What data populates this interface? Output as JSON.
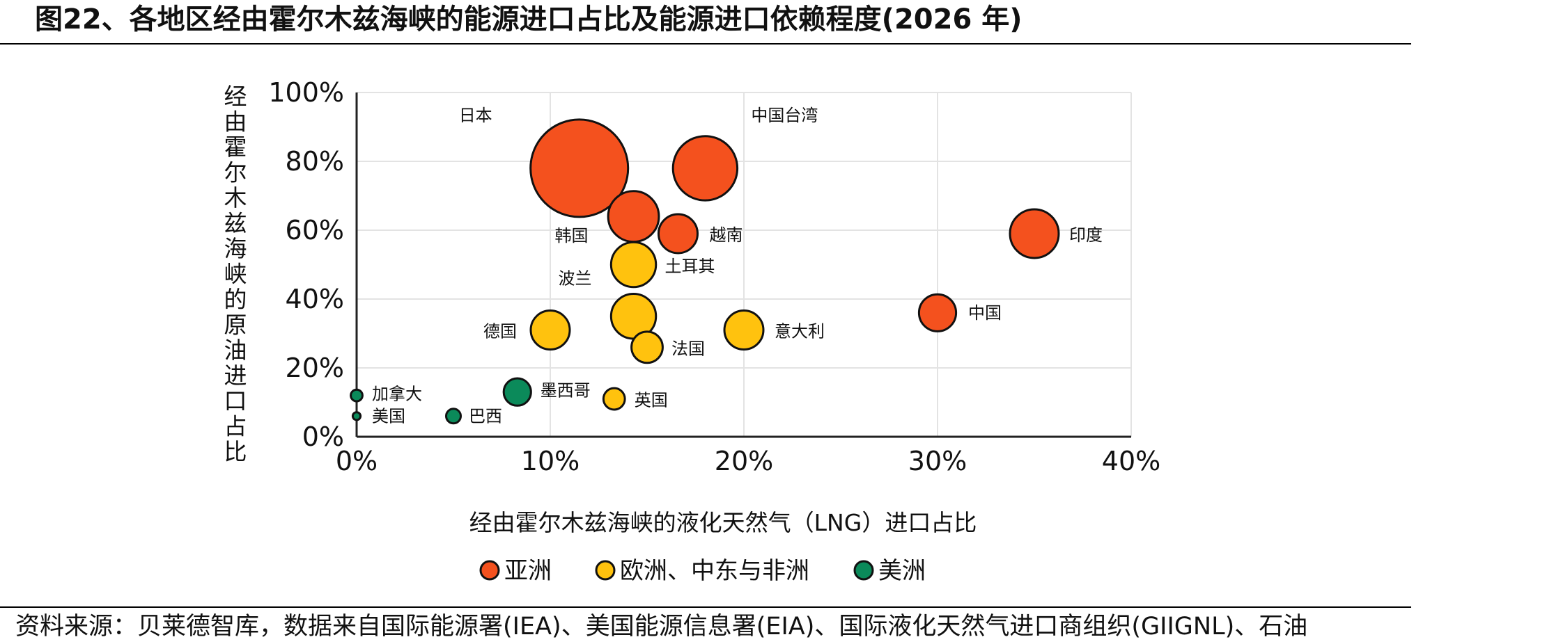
{
  "title": "图22、各地区经由霍尔木兹海峡的能源进口占比及能源进口依赖程度(2026 年)",
  "source": "资料来源：贝莱德智库，数据来自国际能源署(IEA)、美国能源信息署(EIA)、国际液化天然气进口商组织(GIIGNL)、石油",
  "colors": {
    "asia": "#F4511E",
    "europe_me_africa": "#FFC20E",
    "americas": "#0B8A5A",
    "grid": "#e3e3e3",
    "axis": "#222222"
  },
  "chart_data": {
    "type": "scatter",
    "xlabel": "经由霍尔木兹海峡的液化天然气（LNG）进口占比",
    "ylabel": "经由霍尔木兹海峡的原油进口占比",
    "xlim": [
      0,
      40
    ],
    "ylim": [
      0,
      100
    ],
    "x_ticks": [
      "0%",
      "10%",
      "20%",
      "30%",
      "40%"
    ],
    "y_ticks": [
      "0%",
      "20%",
      "40%",
      "60%",
      "80%",
      "100%"
    ],
    "grid": true,
    "legend_position": "bottom",
    "series": [
      {
        "name": "亚洲",
        "color": "#F4511E",
        "points": [
          {
            "label": "日本",
            "x": 11.5,
            "y": 78,
            "size": 5.0
          },
          {
            "label": "中国台湾",
            "x": 18.0,
            "y": 78,
            "size": 3.3
          },
          {
            "label": "韩国",
            "x": 14.3,
            "y": 64,
            "size": 2.6
          },
          {
            "label": "越南",
            "x": 16.6,
            "y": 59,
            "size": 2.0
          },
          {
            "label": "印度",
            "x": 35.0,
            "y": 59,
            "size": 2.5
          },
          {
            "label": "中国",
            "x": 30.0,
            "y": 36,
            "size": 1.9
          }
        ]
      },
      {
        "name": "欧洲、中东与非洲",
        "color": "#FFC20E",
        "points": [
          {
            "label": "波兰",
            "x": 14.3,
            "y": 50,
            "size": 2.3
          },
          {
            "label": "土耳其",
            "x": 14.3,
            "y": 35,
            "size": 2.3
          },
          {
            "label": "德国",
            "x": 10.0,
            "y": 31,
            "size": 2.0
          },
          {
            "label": "意大利",
            "x": 20.0,
            "y": 31,
            "size": 2.0
          },
          {
            "label": "法国",
            "x": 15.0,
            "y": 26,
            "size": 1.6
          },
          {
            "label": "英国",
            "x": 13.3,
            "y": 11,
            "size": 1.1
          }
        ]
      },
      {
        "name": "美洲",
        "color": "#0B8A5A",
        "points": [
          {
            "label": "墨西哥",
            "x": 8.3,
            "y": 13,
            "size": 1.4
          },
          {
            "label": "加拿大",
            "x": 0.0,
            "y": 12,
            "size": 0.6
          },
          {
            "label": "美国",
            "x": 0.0,
            "y": 6,
            "size": 0.4
          },
          {
            "label": "巴西",
            "x": 5.0,
            "y": 6,
            "size": 0.75
          }
        ]
      }
    ]
  }
}
